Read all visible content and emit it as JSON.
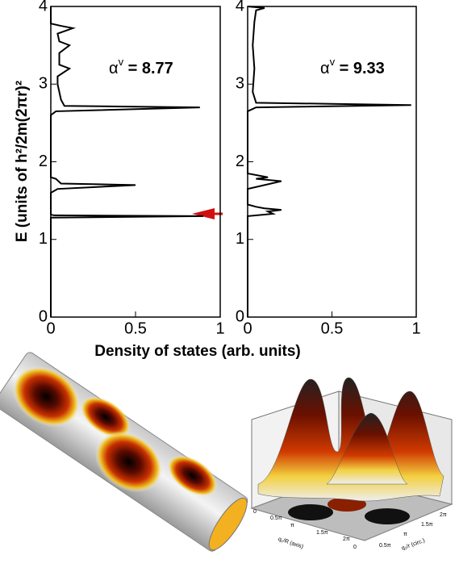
{
  "chart_data": [
    {
      "type": "line",
      "orientation": "horizontal",
      "ylabel": "E (units of h²/2m(2πr)²",
      "xlabel": "Density of states  (arb. units)",
      "annotation": {
        "base": "α",
        "sup": "v",
        "rest": " = 8.77"
      },
      "color": "#000000",
      "x": [
        0,
        1.28,
        1.3,
        1.31,
        1.32,
        1.6,
        1.65,
        1.7,
        1.72,
        1.78,
        1.8,
        2.6,
        2.65,
        2.7,
        2.72,
        2.8,
        2.9,
        3.0,
        3.1,
        3.2,
        3.25,
        3.4,
        3.5,
        3.55,
        3.65,
        3.72,
        3.75,
        3.78,
        4
      ],
      "values": [
        0,
        0,
        0.9,
        0.02,
        0,
        0,
        0.04,
        0.5,
        0.06,
        0.03,
        0,
        0,
        0.03,
        0.88,
        0.08,
        0.06,
        0.05,
        0.04,
        0.04,
        0.11,
        0.05,
        0.05,
        0.11,
        0.05,
        0.04,
        0.13,
        0.06,
        0,
        0
      ],
      "xlim": [
        0,
        1
      ],
      "xticks": [
        0,
        0.5,
        1
      ],
      "ylim": [
        0,
        4
      ],
      "yticks": [
        0,
        1,
        2,
        3,
        4
      ]
    },
    {
      "type": "line",
      "orientation": "horizontal",
      "annotation": {
        "base": "α",
        "sup": "v",
        "rest": " = 9.33"
      },
      "color": "#000000",
      "x": [
        0,
        1.3,
        1.33,
        1.36,
        1.38,
        1.4,
        1.42,
        1.45,
        1.65,
        1.7,
        1.75,
        1.78,
        1.8,
        1.85,
        2.65,
        2.7,
        2.73,
        2.76,
        2.9,
        3.2,
        3.5,
        3.8,
        3.95,
        3.98,
        4
      ],
      "values": [
        0,
        0,
        0.15,
        0.12,
        0.2,
        0.1,
        0.05,
        0,
        0,
        0.1,
        0.2,
        0.05,
        0.12,
        0,
        0,
        0.05,
        0.97,
        0.05,
        0.03,
        0.04,
        0.03,
        0.04,
        0.05,
        0.1,
        0
      ],
      "xlim": [
        0,
        1
      ],
      "xticks": [
        0,
        0.5,
        1
      ],
      "ylim": [
        0,
        4
      ],
      "yticks": [
        0,
        1,
        2,
        3,
        4
      ]
    }
  ],
  "surface_labels": {
    "axis1": "q₁/R (axis)",
    "axis2": "q₂/r (circ.)",
    "ticks1": [
      "0",
      "0.5π",
      "π",
      "1.5π",
      "2π"
    ],
    "ticks2": [
      "0",
      "0.5π",
      "π",
      "1.5π",
      "2π"
    ]
  }
}
